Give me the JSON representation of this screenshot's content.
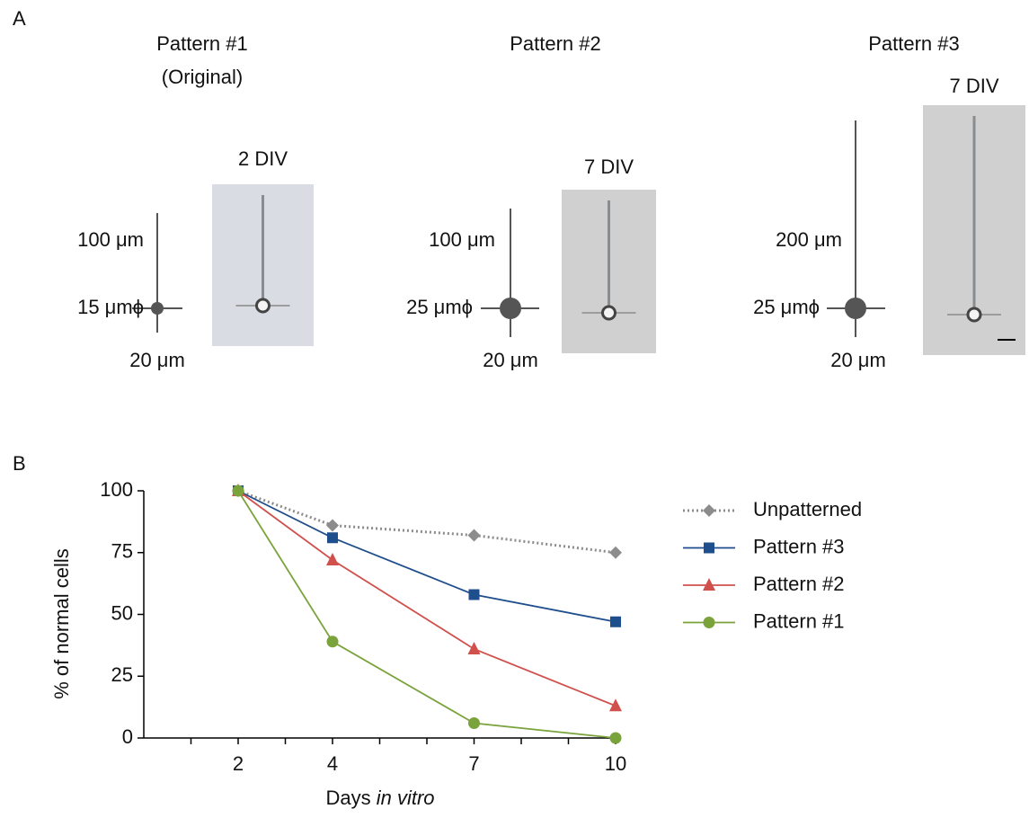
{
  "panel_labels": [
    "A",
    "B"
  ],
  "patterns": [
    {
      "title": "Pattern #1",
      "subtitle": "(Original)",
      "div": "2 DIV",
      "length": "100 μm",
      "soma": "15 μmϕ",
      "cross": "20 μm"
    },
    {
      "title": "Pattern #2",
      "div": "7 DIV",
      "length": "100 μm",
      "soma": "25 μmϕ",
      "cross": "20 μm"
    },
    {
      "title": "Pattern #3",
      "div": "7 DIV",
      "length": "200 μm",
      "soma": "25 μmϕ",
      "cross": "20 μm"
    }
  ],
  "chart_data": {
    "type": "line",
    "x_label": [
      "Days",
      "in vitro"
    ],
    "y_label": "% of normal cells",
    "x": [
      2,
      4,
      7,
      10
    ],
    "xlim": [
      0,
      10
    ],
    "xticks": [
      2,
      4,
      7,
      10
    ],
    "xminor_ticks": [
      1,
      3,
      5,
      6,
      8,
      9
    ],
    "ylim": [
      0,
      100
    ],
    "yticks": [
      0,
      25,
      50,
      75,
      100
    ],
    "series": [
      {
        "name": "Unpatterned",
        "color": "#8c8c8c",
        "marker": "diamond",
        "dash": "dotted",
        "values": [
          100,
          86,
          82,
          75
        ]
      },
      {
        "name": "Pattern #3",
        "color": "#1f4e8c",
        "marker": "square",
        "values": [
          100,
          81,
          58,
          47
        ]
      },
      {
        "name": "Pattern #2",
        "color": "#d0504c",
        "marker": "triangle",
        "values": [
          100,
          72,
          36,
          13
        ]
      },
      {
        "name": "Pattern #1",
        "color": "#7ba33c",
        "marker": "circle",
        "values": [
          100,
          39,
          6,
          0
        ]
      }
    ]
  }
}
